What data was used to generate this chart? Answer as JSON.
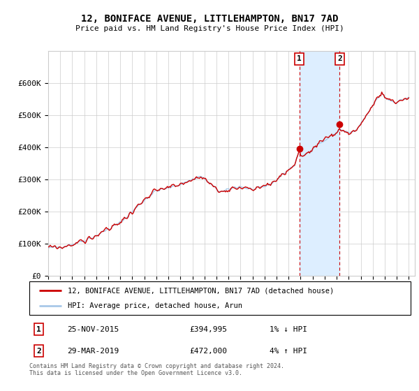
{
  "title": "12, BONIFACE AVENUE, LITTLEHAMPTON, BN17 7AD",
  "subtitle": "Price paid vs. HM Land Registry's House Price Index (HPI)",
  "legend_line1": "12, BONIFACE AVENUE, LITTLEHAMPTON, BN17 7AD (detached house)",
  "legend_line2": "HPI: Average price, detached house, Arun",
  "annotation1_date": "25-NOV-2015",
  "annotation1_price": "£394,995",
  "annotation1_hpi": "1% ↓ HPI",
  "annotation1_year": 2015.9,
  "annotation1_value": 394995,
  "annotation2_date": "29-MAR-2019",
  "annotation2_price": "£472,000",
  "annotation2_hpi": "4% ↑ HPI",
  "annotation2_year": 2019.25,
  "annotation2_value": 472000,
  "hpi_color": "#a8c8e8",
  "price_color": "#cc0000",
  "highlight_color": "#ddeeff",
  "ylim": [
    0,
    700000
  ],
  "yticks": [
    0,
    100000,
    200000,
    300000,
    400000,
    500000,
    600000
  ],
  "ytick_labels": [
    "£0",
    "£100K",
    "£200K",
    "£300K",
    "£400K",
    "£500K",
    "£600K"
  ],
  "footer": "Contains HM Land Registry data © Crown copyright and database right 2024.\nThis data is licensed under the Open Government Licence v3.0.",
  "xlim_left": 1995.0,
  "xlim_right": 2025.5
}
